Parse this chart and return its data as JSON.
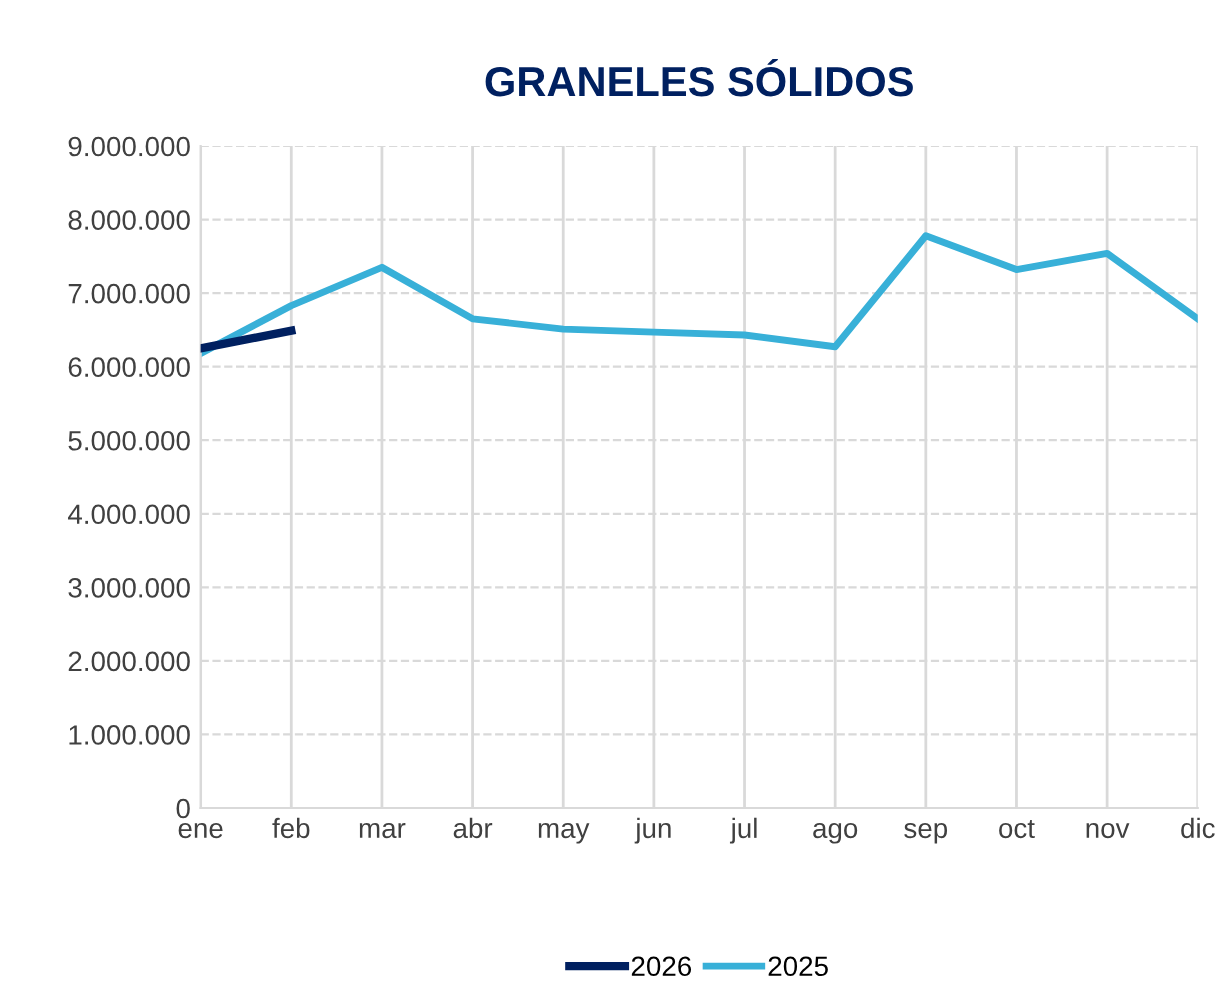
{
  "chart_data": {
    "type": "line",
    "title": "GRANELES SÓLIDOS",
    "categories": [
      "ene",
      "feb",
      "mar",
      "abr",
      "may",
      "jun",
      "jul",
      "ago",
      "sep",
      "oct",
      "nov",
      "dic"
    ],
    "series": [
      {
        "name": "2026",
        "color": "#002060",
        "values": [
          6250000,
          6490000,
          null,
          null,
          null,
          null,
          null,
          null,
          null,
          null,
          null,
          null
        ]
      },
      {
        "name": "2025",
        "color": "#38b0d8",
        "values": [
          6180000,
          6830000,
          7350000,
          6650000,
          6510000,
          6470000,
          6430000,
          6270000,
          7780000,
          7320000,
          7540000,
          6650000
        ]
      }
    ],
    "ylim": [
      0,
      9000000
    ],
    "yticks": [
      {
        "value": 0,
        "label": "0"
      },
      {
        "value": 1000000,
        "label": "1.000.000"
      },
      {
        "value": 2000000,
        "label": "2.000.000"
      },
      {
        "value": 3000000,
        "label": "3.000.000"
      },
      {
        "value": 4000000,
        "label": "4.000.000"
      },
      {
        "value": 5000000,
        "label": "5.000.000"
      },
      {
        "value": 6000000,
        "label": "6.000.000"
      },
      {
        "value": 7000000,
        "label": "7.000.000"
      },
      {
        "value": 8000000,
        "label": "8.000.000"
      },
      {
        "value": 9000000,
        "label": "9.000.000"
      }
    ],
    "grid": true,
    "legend": "bottom",
    "marker": "none",
    "line_style": "solid"
  }
}
